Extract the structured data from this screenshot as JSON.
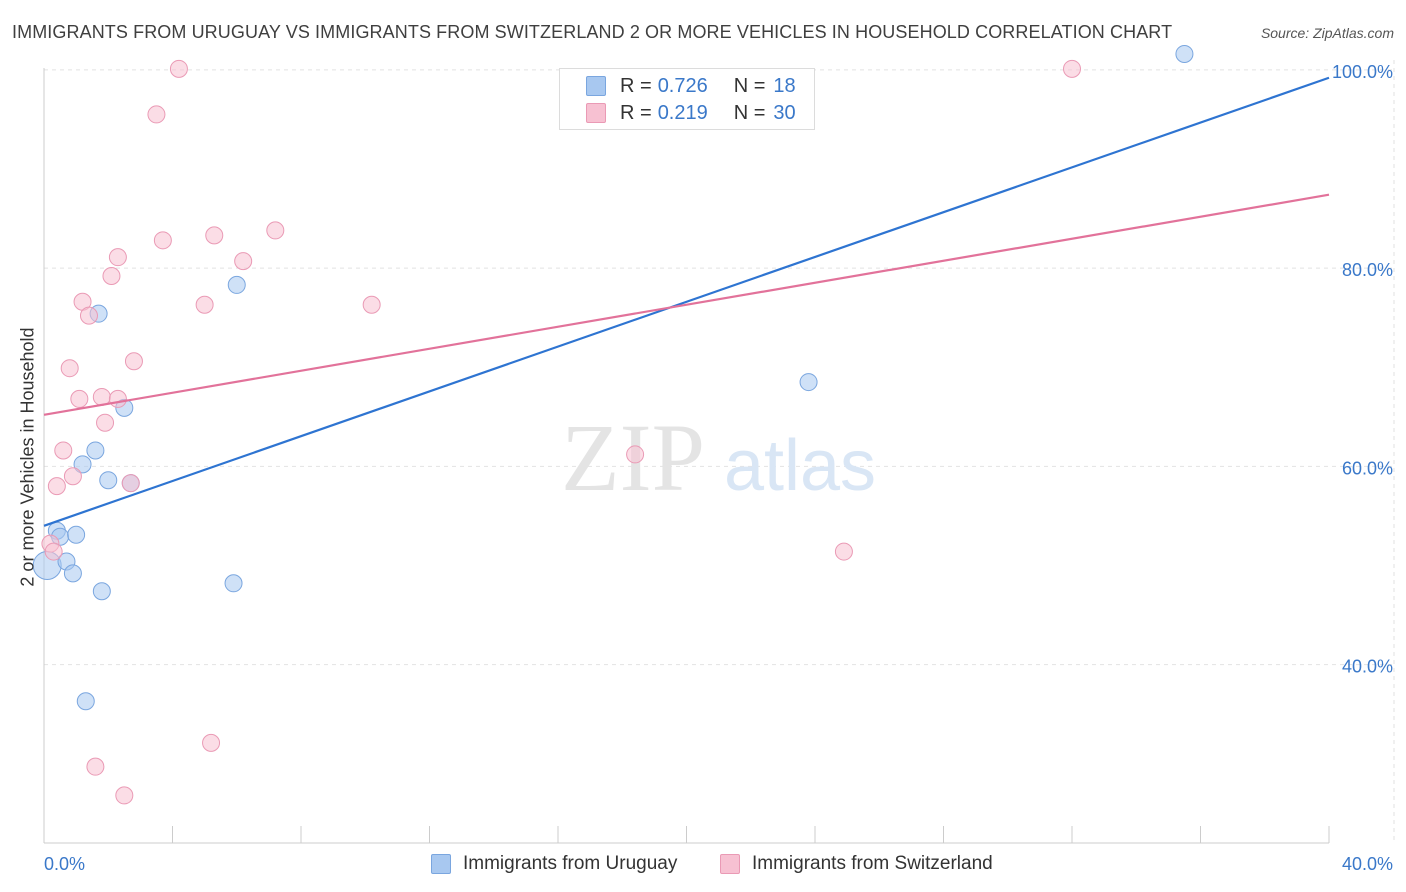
{
  "title": "IMMIGRANTS FROM URUGUAY VS IMMIGRANTS FROM SWITZERLAND 2 OR MORE VEHICLES IN HOUSEHOLD CORRELATION CHART",
  "source": "Source: ZipAtlas.com",
  "watermark": {
    "zip": "ZIP",
    "atlas": "atlas"
  },
  "stats_legend": [
    {
      "r_label": "R =",
      "r_value": "0.726",
      "n_label": "N =",
      "n_value": "18",
      "color": "#a8c8f0",
      "border": "#7aa6df"
    },
    {
      "r_label": "R =",
      "r_value": "0.219",
      "n_label": "N =",
      "n_value": "30",
      "color": "#f7c1d2",
      "border": "#ea9ab5"
    }
  ],
  "chart_data": {
    "type": "scatter",
    "title": "IMMIGRANTS FROM URUGUAY VS IMMIGRANTS FROM SWITZERLAND 2 OR MORE VEHICLES IN HOUSEHOLD CORRELATION CHART",
    "xlabel": "",
    "ylabel": "2 or more Vehicles in Household",
    "xlim": [
      0,
      40
    ],
    "ylim": [
      22,
      102
    ],
    "x_tick_labels": [
      {
        "value": 0,
        "label": "0.0%"
      },
      {
        "value": 40,
        "label": "40.0%"
      }
    ],
    "y_tick_labels": [
      {
        "value": 40,
        "label": "40.0%"
      },
      {
        "value": 60,
        "label": "60.0%"
      },
      {
        "value": 80,
        "label": "80.0%"
      },
      {
        "value": 100,
        "label": "100.0%"
      }
    ],
    "grid": true,
    "legend_position": "bottom",
    "series": [
      {
        "name": "Immigrants from Uruguay",
        "color": "#a8c8f0",
        "edge": "#7aa6df",
        "line_color": "#2e74d1",
        "trend": {
          "x": [
            0,
            40
          ],
          "y": [
            54.0,
            99.2
          ]
        },
        "points": [
          {
            "x": 0.1,
            "y": 50.0
          },
          {
            "x": 0.4,
            "y": 53.5
          },
          {
            "x": 0.5,
            "y": 52.9
          },
          {
            "x": 0.7,
            "y": 50.4
          },
          {
            "x": 0.9,
            "y": 49.2
          },
          {
            "x": 1.0,
            "y": 53.1
          },
          {
            "x": 1.2,
            "y": 60.2
          },
          {
            "x": 1.3,
            "y": 36.3
          },
          {
            "x": 1.6,
            "y": 61.6
          },
          {
            "x": 1.7,
            "y": 75.4
          },
          {
            "x": 1.8,
            "y": 47.4
          },
          {
            "x": 2.0,
            "y": 58.6
          },
          {
            "x": 2.5,
            "y": 65.9
          },
          {
            "x": 2.7,
            "y": 58.3
          },
          {
            "x": 5.9,
            "y": 48.2
          },
          {
            "x": 6.0,
            "y": 78.3
          },
          {
            "x": 23.8,
            "y": 68.5
          },
          {
            "x": 35.5,
            "y": 101.6
          }
        ]
      },
      {
        "name": "Immigrants from Switzerland",
        "color": "#f7c1d2",
        "edge": "#ea9ab5",
        "line_color": "#e2729a",
        "trend": {
          "x": [
            0,
            40
          ],
          "y": [
            65.2,
            87.4
          ]
        },
        "points": [
          {
            "x": 0.2,
            "y": 52.2
          },
          {
            "x": 0.3,
            "y": 51.4
          },
          {
            "x": 0.4,
            "y": 58.0
          },
          {
            "x": 0.6,
            "y": 61.6
          },
          {
            "x": 0.8,
            "y": 69.9
          },
          {
            "x": 0.9,
            "y": 59.0
          },
          {
            "x": 1.1,
            "y": 66.8
          },
          {
            "x": 1.2,
            "y": 76.6
          },
          {
            "x": 1.4,
            "y": 75.2
          },
          {
            "x": 1.6,
            "y": 29.7
          },
          {
            "x": 1.8,
            "y": 67.0
          },
          {
            "x": 1.9,
            "y": 64.4
          },
          {
            "x": 2.1,
            "y": 79.2
          },
          {
            "x": 2.3,
            "y": 66.8
          },
          {
            "x": 2.3,
            "y": 81.1
          },
          {
            "x": 2.5,
            "y": 26.8
          },
          {
            "x": 2.7,
            "y": 58.3
          },
          {
            "x": 2.8,
            "y": 70.6
          },
          {
            "x": 3.5,
            "y": 95.5
          },
          {
            "x": 3.7,
            "y": 82.8
          },
          {
            "x": 4.2,
            "y": 100.1
          },
          {
            "x": 5.0,
            "y": 76.3
          },
          {
            "x": 5.2,
            "y": 32.1
          },
          {
            "x": 5.3,
            "y": 83.3
          },
          {
            "x": 6.2,
            "y": 80.7
          },
          {
            "x": 7.2,
            "y": 83.8
          },
          {
            "x": 10.2,
            "y": 76.3
          },
          {
            "x": 18.4,
            "y": 61.2
          },
          {
            "x": 24.9,
            "y": 51.4
          },
          {
            "x": 32.0,
            "y": 100.1
          }
        ]
      }
    ]
  }
}
